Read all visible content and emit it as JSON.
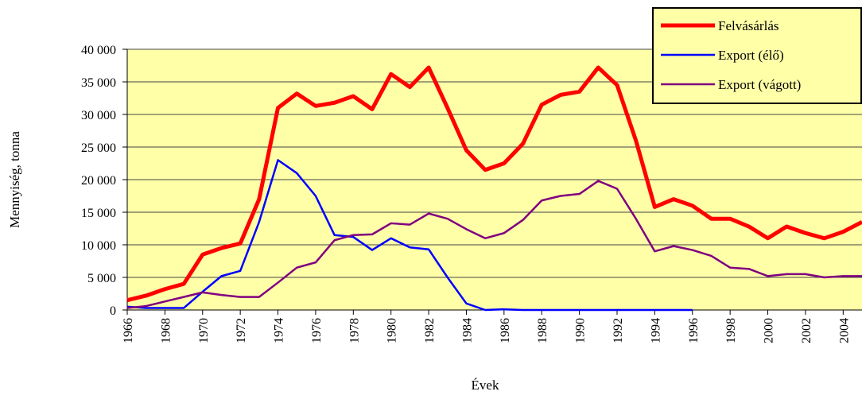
{
  "chart_data": {
    "type": "line",
    "y_label": "Mennyiség, tonna",
    "x_label": "Évek",
    "x": [
      1966,
      1967,
      1968,
      1969,
      1970,
      1971,
      1972,
      1973,
      1974,
      1975,
      1976,
      1977,
      1978,
      1979,
      1980,
      1981,
      1982,
      1983,
      1984,
      1985,
      1986,
      1987,
      1988,
      1989,
      1990,
      1991,
      1992,
      1993,
      1994,
      1995,
      1996,
      1997,
      1998,
      1999,
      2000,
      2001,
      2002,
      2003,
      2004,
      2005
    ],
    "series": [
      {
        "name": "Felvásárlás",
        "color": "#ff0000",
        "width": 5,
        "values": [
          1500,
          2200,
          3200,
          4000,
          8500,
          9500,
          10200,
          17000,
          31000,
          33200,
          31300,
          31800,
          32800,
          30800,
          36200,
          34200,
          37200,
          31000,
          24500,
          21500,
          22500,
          25500,
          31500,
          33000,
          33500,
          37200,
          34500,
          26000,
          15800,
          17000,
          16000,
          14000,
          14000,
          12800,
          11000,
          12800,
          11800,
          11000,
          12000,
          13500
        ]
      },
      {
        "name": "Export (élő)",
        "color": "#0000ff",
        "width": 2.5,
        "values": [
          500,
          300,
          300,
          300,
          2800,
          5200,
          6000,
          13500,
          23000,
          21000,
          17500,
          11500,
          11200,
          9200,
          11000,
          9600,
          9300,
          5000,
          1000,
          0,
          100,
          0,
          0,
          0,
          0,
          0,
          0,
          0,
          0,
          0,
          0,
          null,
          null,
          null,
          null,
          null,
          null,
          null,
          null,
          null
        ]
      },
      {
        "name": "Export (vágott)",
        "color": "#800080",
        "width": 2.5,
        "values": [
          300,
          600,
          1300,
          2000,
          2700,
          2300,
          2000,
          2000,
          4200,
          6500,
          7300,
          10700,
          11500,
          11600,
          13300,
          13100,
          14800,
          14000,
          12400,
          11000,
          11800,
          13800,
          16800,
          17500,
          17800,
          19800,
          18600,
          14000,
          9000,
          9800,
          9200,
          8300,
          6500,
          6300,
          5200,
          5500,
          5500,
          5000,
          5200,
          5200
        ]
      }
    ],
    "xlim": [
      1966,
      2005
    ],
    "xticks": [
      1966,
      1968,
      1970,
      1972,
      1974,
      1976,
      1978,
      1980,
      1982,
      1984,
      1986,
      1988,
      1990,
      1992,
      1994,
      1996,
      1998,
      2000,
      2002,
      2004
    ],
    "ylim": [
      0,
      40000
    ],
    "yticks": [
      {
        "value": 0,
        "label": "0"
      },
      {
        "value": 5000,
        "label": "5 000"
      },
      {
        "value": 10000,
        "label": "10 000"
      },
      {
        "value": 15000,
        "label": "15 000"
      },
      {
        "value": 20000,
        "label": "20 000"
      },
      {
        "value": 25000,
        "label": "25 000"
      },
      {
        "value": 30000,
        "label": "30 000"
      },
      {
        "value": 35000,
        "label": "35 000"
      },
      {
        "value": 40000,
        "label": "40 000"
      }
    ],
    "grid": true,
    "background": "#ffffa8",
    "legend": "upper right"
  }
}
